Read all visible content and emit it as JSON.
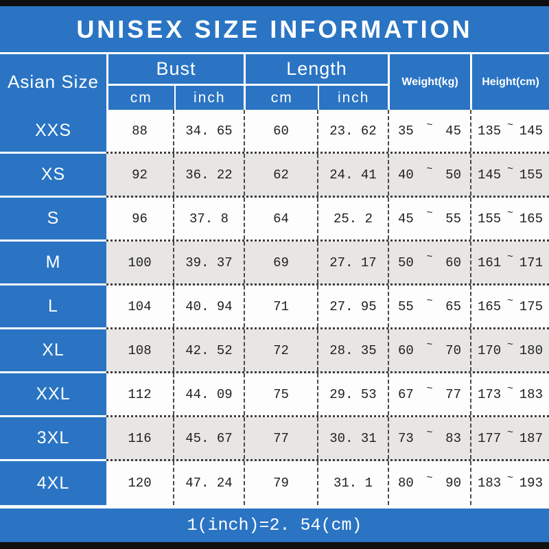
{
  "title_bar": {
    "text": "UNISEX SIZE INFORMATION"
  },
  "header": {
    "row_header": "Asian Size",
    "groups": [
      {
        "label": "Bust",
        "sub": [
          "cm",
          "inch"
        ]
      },
      {
        "label": "Length",
        "sub": [
          "cm",
          "inch"
        ]
      }
    ],
    "weight_label": "Weight(kg)",
    "height_label": "Height(cm)"
  },
  "table": {
    "tilde": "~",
    "rows": [
      {
        "size": "XXS",
        "bust_cm": "88",
        "bust_inch": "34. 65",
        "length_cm": "60",
        "length_inch": "23. 62",
        "weight_min": "35",
        "weight_max": "45",
        "height_min": "135",
        "height_max": "145"
      },
      {
        "size": "XS",
        "bust_cm": "92",
        "bust_inch": "36. 22",
        "length_cm": "62",
        "length_inch": "24. 41",
        "weight_min": "40",
        "weight_max": "50",
        "height_min": "145",
        "height_max": "155"
      },
      {
        "size": "S",
        "bust_cm": "96",
        "bust_inch": "37. 8",
        "length_cm": "64",
        "length_inch": "25. 2",
        "weight_min": "45",
        "weight_max": "55",
        "height_min": "155",
        "height_max": "165"
      },
      {
        "size": "M",
        "bust_cm": "100",
        "bust_inch": "39. 37",
        "length_cm": "69",
        "length_inch": "27. 17",
        "weight_min": "50",
        "weight_max": "60",
        "height_min": "161",
        "height_max": "171"
      },
      {
        "size": "L",
        "bust_cm": "104",
        "bust_inch": "40. 94",
        "length_cm": "71",
        "length_inch": "27. 95",
        "weight_min": "55",
        "weight_max": "65",
        "height_min": "165",
        "height_max": "175"
      },
      {
        "size": "XL",
        "bust_cm": "108",
        "bust_inch": "42. 52",
        "length_cm": "72",
        "length_inch": "28. 35",
        "weight_min": "60",
        "weight_max": "70",
        "height_min": "170",
        "height_max": "180"
      },
      {
        "size": "XXL",
        "bust_cm": "112",
        "bust_inch": "44. 09",
        "length_cm": "75",
        "length_inch": "29. 53",
        "weight_min": "67",
        "weight_max": "77",
        "height_min": "173",
        "height_max": "183"
      },
      {
        "size": "3XL",
        "bust_cm": "116",
        "bust_inch": "45. 67",
        "length_cm": "77",
        "length_inch": "30. 31",
        "weight_min": "73",
        "weight_max": "83",
        "height_min": "177",
        "height_max": "187"
      },
      {
        "size": "4XL",
        "bust_cm": "120",
        "bust_inch": "47. 24",
        "length_cm": "79",
        "length_inch": "31. 1",
        "weight_min": "80",
        "weight_max": "90",
        "height_min": "183",
        "height_max": "193"
      }
    ]
  },
  "footer": {
    "text": "1(inch)=2. 54(cm)"
  },
  "colors": {
    "accent_blue": "#2a74c3",
    "alt_row_gray": "#e8e6e4",
    "bar_black": "#0e0e0e",
    "text_dark": "#1f1f1f"
  },
  "chart_data": {
    "type": "table",
    "title": "UNISEX SIZE INFORMATION",
    "columns": [
      "Asian Size",
      "Bust (cm)",
      "Bust (inch)",
      "Length (cm)",
      "Length (inch)",
      "Weight (kg)",
      "Height (cm)"
    ],
    "rows": [
      [
        "XXS",
        88,
        34.65,
        60,
        23.62,
        "35~45",
        "135~145"
      ],
      [
        "XS",
        92,
        36.22,
        62,
        24.41,
        "40~50",
        "145~155"
      ],
      [
        "S",
        96,
        37.8,
        64,
        25.2,
        "45~55",
        "155~165"
      ],
      [
        "M",
        100,
        39.37,
        69,
        27.17,
        "50~60",
        "161~171"
      ],
      [
        "L",
        104,
        40.94,
        71,
        27.95,
        "55~65",
        "165~175"
      ],
      [
        "XL",
        108,
        42.52,
        72,
        28.35,
        "60~70",
        "170~180"
      ],
      [
        "XXL",
        112,
        44.09,
        75,
        29.53,
        "67~77",
        "173~183"
      ],
      [
        "3XL",
        116,
        45.67,
        77,
        30.31,
        "73~83",
        "177~187"
      ],
      [
        "4XL",
        120,
        47.24,
        79,
        31.1,
        "80~90",
        "183~193"
      ]
    ],
    "footnote": "1(inch)=2.54(cm)"
  }
}
